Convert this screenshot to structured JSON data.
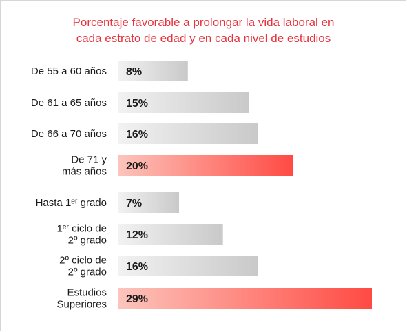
{
  "chart_data": {
    "type": "bar",
    "orientation": "horizontal",
    "title_line1": "Porcentaje favorable a prolongar la vida laboral en",
    "title_line2": "cada estrato de edad y en cada nivel de estudios",
    "xlabel": "",
    "ylabel": "",
    "xlim": [
      0,
      29
    ],
    "grid": false,
    "categories": [
      [
        "De 55 a 60 años"
      ],
      [
        "De 61 a 65 años"
      ],
      [
        "De 66 a 70 años"
      ],
      [
        "De 71 y",
        "más años"
      ],
      [
        "Hasta 1ᵉʳ grado"
      ],
      [
        "1ᵉʳ ciclo de",
        "2º grado"
      ],
      [
        "2º ciclo de",
        "2º grado"
      ],
      [
        "Estudios",
        "Superiores"
      ]
    ],
    "values": [
      8,
      15,
      16,
      20,
      7,
      12,
      16,
      29
    ],
    "value_labels": [
      "8%",
      "15%",
      "16%",
      "20%",
      "7%",
      "12%",
      "16%",
      "29%"
    ],
    "highlighted": [
      false,
      false,
      false,
      true,
      false,
      false,
      false,
      true
    ],
    "colors": {
      "title": "#e8323c",
      "bar_gray_start": "#f2f2f2",
      "bar_gray_end": "#c9c9c9",
      "bar_red_start": "#fcc5bc",
      "bar_red_end": "#ff4a43"
    }
  }
}
